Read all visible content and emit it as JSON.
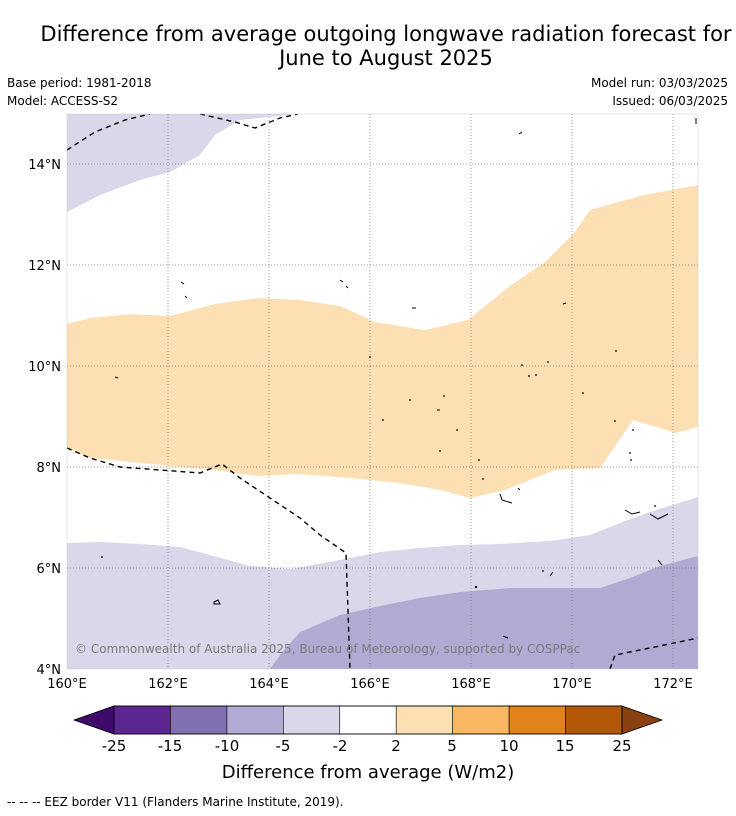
{
  "title": {
    "line1": "Difference from average outgoing longwave radiation forecast for",
    "line2": "June to August 2025"
  },
  "info": {
    "base_period": "Base period: 1981-2018",
    "model": "Model: ACCESS-S2",
    "model_run": "Model run: 03/03/2025",
    "issued": "Issued: 06/03/2025"
  },
  "map": {
    "lon_ticks": [
      "160°E",
      "162°E",
      "164°E",
      "166°E",
      "168°E",
      "170°E",
      "172°E"
    ],
    "lat_ticks": [
      "14°N",
      "12°N",
      "10°N",
      "8°N",
      "6°N",
      "4°N"
    ],
    "copyright": "© Commonwealth of Australia 2025, Bureau of Meteorology, supported by COSPPac"
  },
  "colorbar": {
    "ticks": [
      "-25",
      "-15",
      "-10",
      "-5",
      "-2",
      "2",
      "5",
      "10",
      "15",
      "25"
    ],
    "colors": [
      "#5b2690",
      "#8270b0",
      "#b2aad3",
      "#d9d8ea",
      "#ffffff",
      "#fce0b4",
      "#fbb862",
      "#e1821b",
      "#b25708"
    ],
    "low_extend_color": "#3f0a6b",
    "high_extend_color": "#8a4010",
    "label": "Difference from average (W/m2)"
  },
  "legend": {
    "footnote": "--  --  -- EEZ border V11 (Flanders Marine Institute, 2019)."
  }
}
